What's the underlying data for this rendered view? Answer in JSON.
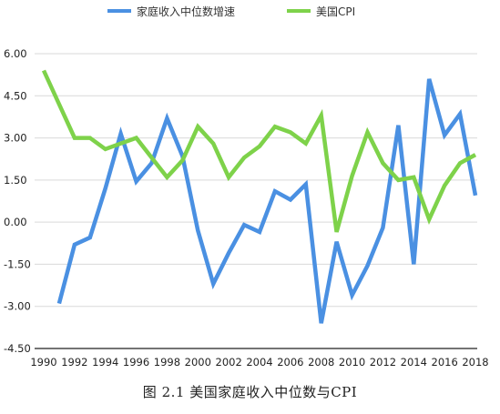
{
  "caption": "图 2.1 美国家庭收入中位数与CPI",
  "chart_data": {
    "type": "line",
    "title": "",
    "xlabel": "",
    "ylabel": "",
    "x": [
      1990,
      1991,
      1992,
      1993,
      1994,
      1995,
      1996,
      1997,
      1998,
      1999,
      2000,
      2001,
      2002,
      2003,
      2004,
      2005,
      2006,
      2007,
      2008,
      2009,
      2010,
      2011,
      2012,
      2013,
      2014,
      2015,
      2016,
      2017,
      2018
    ],
    "x_tick_labels": [
      "1990",
      "1992",
      "1994",
      "1996",
      "1998",
      "2000",
      "2002",
      "2004",
      "2006",
      "2008",
      "2010",
      "2012",
      "2014",
      "2016",
      "2018"
    ],
    "y_tick_labels": [
      "6.00",
      "4.50",
      "3.00",
      "1.50",
      "0.00",
      "-1.50",
      "-3.00",
      "-4.50"
    ],
    "ylim": [
      -4.5,
      6.0
    ],
    "legend_position": "top",
    "grid": "horizontal",
    "series": [
      {
        "name": "家庭收入中位数增速",
        "color": "#4a90e2",
        "values": [
          null,
          -2.9,
          -0.8,
          -0.55,
          1.2,
          3.15,
          1.45,
          2.1,
          3.7,
          2.35,
          -0.3,
          -2.2,
          -1.1,
          -0.1,
          -0.35,
          1.1,
          0.8,
          1.35,
          -3.6,
          -0.7,
          -2.6,
          -1.55,
          -0.2,
          3.45,
          -1.5,
          5.1,
          3.1,
          3.85,
          0.95
        ]
      },
      {
        "name": "美国CPI",
        "color": "#7ed24a",
        "values": [
          5.4,
          4.2,
          3.0,
          3.0,
          2.6,
          2.8,
          3.0,
          2.3,
          1.6,
          2.2,
          3.4,
          2.8,
          1.6,
          2.3,
          2.7,
          3.4,
          3.2,
          2.8,
          3.8,
          -0.35,
          1.65,
          3.2,
          2.1,
          1.5,
          1.6,
          0.1,
          1.3,
          2.1,
          2.4
        ]
      }
    ]
  }
}
